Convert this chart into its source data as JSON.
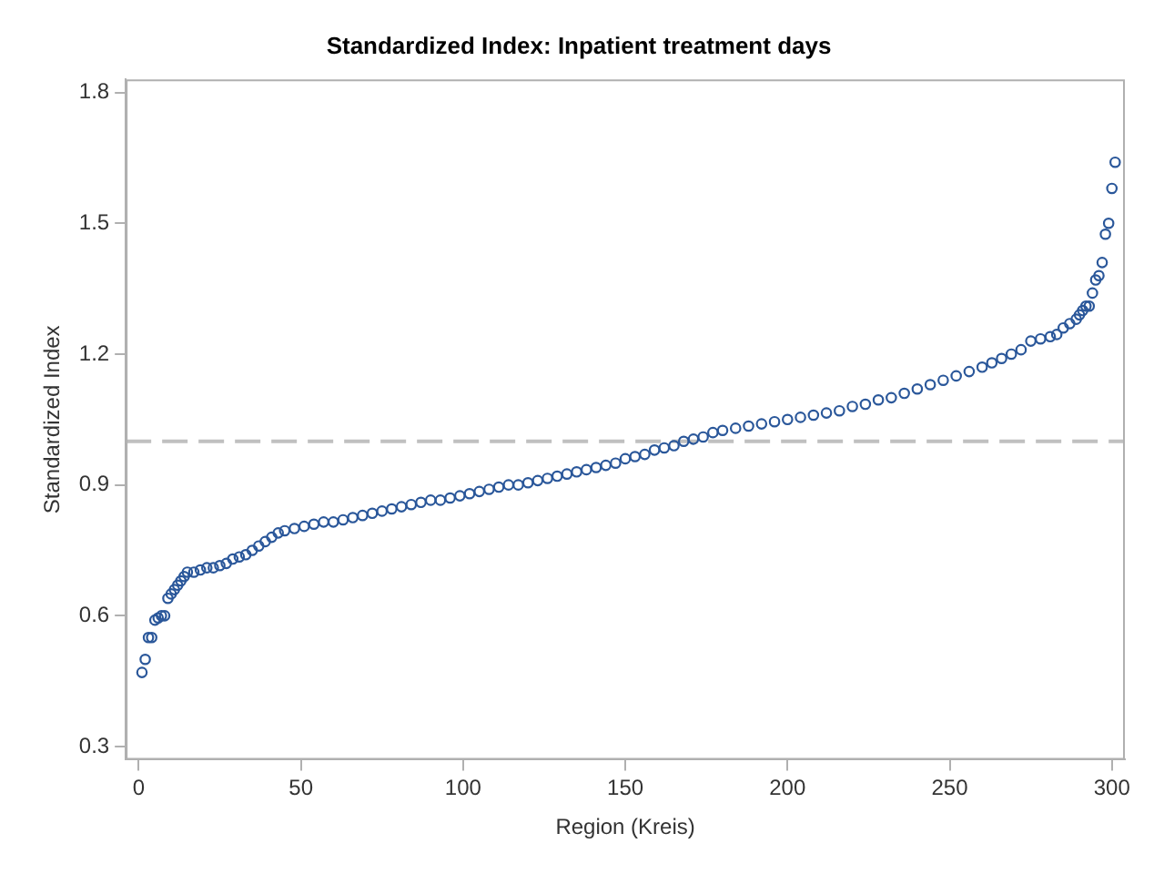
{
  "chart_data": {
    "type": "scatter",
    "title": "Standardized Index: Inpatient treatment days",
    "xlabel": "Region (Kreis)",
    "ylabel": "Standardized Index",
    "xlim": [
      -4,
      304
    ],
    "xticks": [
      0,
      50,
      100,
      150,
      200,
      250,
      300
    ],
    "ylim": [
      0.27,
      1.83
    ],
    "yticks": [
      0.3,
      0.6,
      0.9,
      1.2,
      1.5,
      1.8
    ],
    "grid": false,
    "legend": false,
    "marker": "circle",
    "ref_lines": [
      {
        "axis": "y",
        "value": 1.0,
        "color": "#c0c0c0",
        "line_style": "dashed"
      }
    ],
    "series": [
      {
        "color": "#2a579a",
        "x": [
          1,
          2,
          3,
          4,
          5,
          6,
          7,
          8,
          9,
          10,
          11,
          12,
          13,
          14,
          15,
          17,
          19,
          21,
          23,
          25,
          27,
          29,
          31,
          33,
          35,
          37,
          39,
          41,
          43,
          45,
          48,
          51,
          54,
          57,
          60,
          63,
          66,
          69,
          72,
          75,
          78,
          81,
          84,
          87,
          90,
          93,
          96,
          99,
          102,
          105,
          108,
          111,
          114,
          117,
          120,
          123,
          126,
          129,
          132,
          135,
          138,
          141,
          144,
          147,
          150,
          153,
          156,
          159,
          162,
          165,
          168,
          171,
          174,
          177,
          180,
          184,
          188,
          192,
          196,
          200,
          204,
          208,
          212,
          216,
          220,
          224,
          228,
          232,
          236,
          240,
          244,
          248,
          252,
          256,
          260,
          263,
          266,
          269,
          272,
          275,
          278,
          281,
          283,
          285,
          287,
          289,
          290,
          291,
          292,
          293,
          294,
          295,
          296,
          297,
          298,
          299,
          300,
          301
        ],
        "values": [
          0.47,
          0.5,
          0.55,
          0.55,
          0.59,
          0.595,
          0.6,
          0.6,
          0.64,
          0.65,
          0.66,
          0.67,
          0.68,
          0.69,
          0.7,
          0.7,
          0.705,
          0.71,
          0.71,
          0.715,
          0.72,
          0.73,
          0.735,
          0.74,
          0.75,
          0.76,
          0.77,
          0.78,
          0.79,
          0.795,
          0.8,
          0.805,
          0.81,
          0.815,
          0.815,
          0.82,
          0.825,
          0.83,
          0.835,
          0.84,
          0.845,
          0.85,
          0.855,
          0.86,
          0.865,
          0.865,
          0.87,
          0.875,
          0.88,
          0.885,
          0.89,
          0.895,
          0.9,
          0.9,
          0.905,
          0.91,
          0.915,
          0.92,
          0.925,
          0.93,
          0.935,
          0.94,
          0.945,
          0.95,
          0.96,
          0.965,
          0.97,
          0.98,
          0.985,
          0.99,
          1.0,
          1.005,
          1.01,
          1.02,
          1.025,
          1.03,
          1.035,
          1.04,
          1.045,
          1.05,
          1.055,
          1.06,
          1.065,
          1.07,
          1.08,
          1.085,
          1.095,
          1.1,
          1.11,
          1.12,
          1.13,
          1.14,
          1.15,
          1.16,
          1.17,
          1.18,
          1.19,
          1.2,
          1.21,
          1.23,
          1.235,
          1.24,
          1.245,
          1.26,
          1.27,
          1.28,
          1.29,
          1.3,
          1.31,
          1.31,
          1.34,
          1.37,
          1.38,
          1.41,
          1.475,
          1.5,
          1.58,
          1.64
        ]
      }
    ]
  }
}
